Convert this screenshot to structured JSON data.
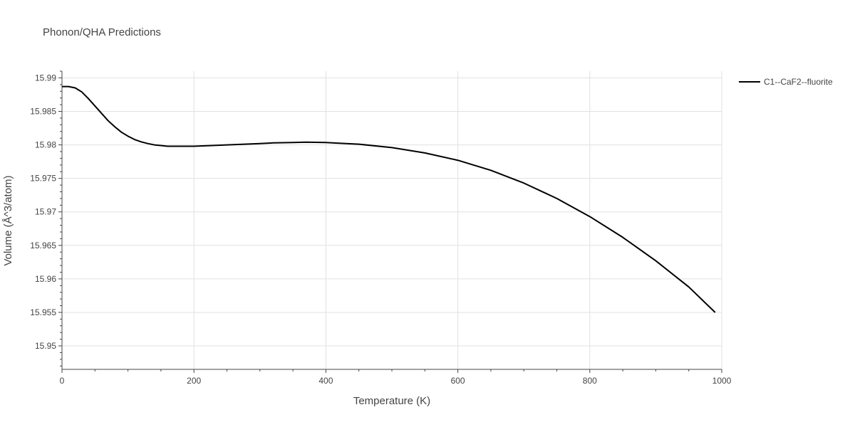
{
  "chart_data": {
    "type": "line",
    "title": "Phonon/QHA Predictions",
    "xlabel": "Temperature (K)",
    "ylabel": "Volume (Å^3/atom)",
    "xlim": [
      0,
      1000
    ],
    "ylim": [
      15.9465,
      15.991
    ],
    "x_ticks": [
      0,
      200,
      400,
      600,
      800,
      1000
    ],
    "x_tick_labels": [
      "0",
      "200",
      "400",
      "600",
      "800",
      "1000"
    ],
    "y_ticks": [
      15.95,
      15.955,
      15.96,
      15.965,
      15.97,
      15.975,
      15.98,
      15.985,
      15.99
    ],
    "y_tick_labels": [
      "15.95",
      "15.955",
      "15.96",
      "15.965",
      "15.97",
      "15.975",
      "15.98",
      "15.985",
      "15.99"
    ],
    "grid": true,
    "legend_position": "top-right",
    "series": [
      {
        "name": "C1--CaF2--fluorite",
        "color": "#000000",
        "x": [
          0,
          10,
          20,
          30,
          40,
          50,
          60,
          70,
          80,
          90,
          100,
          110,
          120,
          130,
          140,
          150,
          160,
          170,
          180,
          190,
          200,
          250,
          300,
          320,
          350,
          370,
          400,
          420,
          450,
          500,
          550,
          600,
          650,
          700,
          750,
          800,
          850,
          900,
          950,
          990
        ],
        "y": [
          15.9887,
          15.9887,
          15.9885,
          15.9879,
          15.9869,
          15.9858,
          15.9847,
          15.9836,
          15.9827,
          15.9819,
          15.9813,
          15.9808,
          15.98045,
          15.9802,
          15.98,
          15.9799,
          15.9798,
          15.9798,
          15.9798,
          15.9798,
          15.9798,
          15.98,
          15.9802,
          15.9803,
          15.98035,
          15.9804,
          15.98035,
          15.98025,
          15.9801,
          15.9796,
          15.9788,
          15.9777,
          15.9762,
          15.9743,
          15.972,
          15.9693,
          15.9662,
          15.9627,
          15.9588,
          15.955
        ]
      }
    ]
  }
}
